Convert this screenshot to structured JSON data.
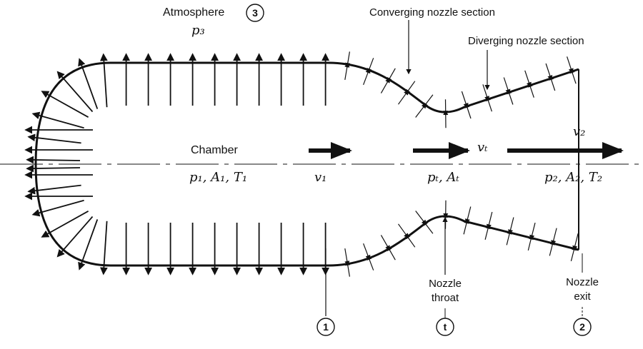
{
  "labels": {
    "atmosphere": "Atmosphere",
    "p3": "p₃",
    "converging": "Converging nozzle section",
    "diverging": "Diverging nozzle section",
    "chamber": "Chamber",
    "chamber_props": "p₁, A₁, T₁",
    "v1": "v₁",
    "throat_props": "pₜ, Aₜ",
    "vt": "vₜ",
    "v2": "v₂",
    "exit_props": "p₂, A₂, T₂",
    "throat_line1": "Nozzle",
    "throat_line2": "throat",
    "exit_line1": "Nozzle",
    "exit_line2": "exit"
  },
  "stations": {
    "atmosphere": "3",
    "chamber": "1",
    "throat": "t",
    "exit": "2"
  }
}
